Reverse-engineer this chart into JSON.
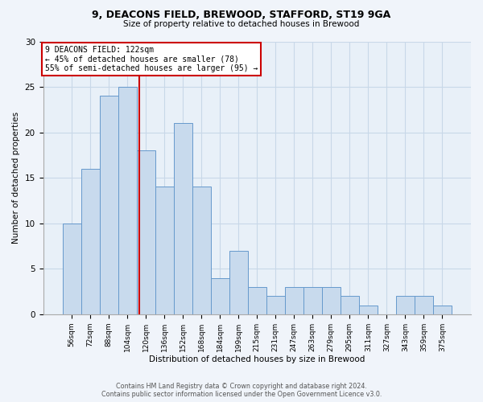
{
  "title1": "9, DEACONS FIELD, BREWOOD, STAFFORD, ST19 9GA",
  "title2": "Size of property relative to detached houses in Brewood",
  "xlabel": "Distribution of detached houses by size in Brewood",
  "ylabel": "Number of detached properties",
  "categories": [
    "56sqm",
    "72sqm",
    "88sqm",
    "104sqm",
    "120sqm",
    "136sqm",
    "152sqm",
    "168sqm",
    "184sqm",
    "199sqm",
    "215sqm",
    "231sqm",
    "247sqm",
    "263sqm",
    "279sqm",
    "295sqm",
    "311sqm",
    "327sqm",
    "343sqm",
    "359sqm",
    "375sqm"
  ],
  "values": [
    10,
    16,
    24,
    25,
    18,
    14,
    21,
    14,
    4,
    7,
    3,
    2,
    3,
    3,
    3,
    2,
    1,
    0,
    2,
    2,
    1
  ],
  "bar_color": "#c8daed",
  "bar_edge_color": "#6699cc",
  "annotation_line1": "9 DEACONS FIELD: 122sqm",
  "annotation_line2": "← 45% of detached houses are smaller (78)",
  "annotation_line3": "55% of semi-detached houses are larger (95) →",
  "annotation_box_facecolor": "#ffffff",
  "annotation_box_edgecolor": "#cc0000",
  "vline_color": "#cc0000",
  "ylim": [
    0,
    30
  ],
  "yticks": [
    0,
    5,
    10,
    15,
    20,
    25,
    30
  ],
  "footer1": "Contains HM Land Registry data © Crown copyright and database right 2024.",
  "footer2": "Contains public sector information licensed under the Open Government Licence v3.0.",
  "grid_color": "#c8d8e8",
  "ax_bg_color": "#e8f0f8",
  "fig_bg_color": "#f0f4fa"
}
